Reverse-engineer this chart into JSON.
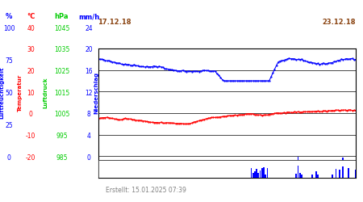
{
  "title_left": "17.12.18",
  "title_right": "23.12.18",
  "footer": "Erstellt: 15.01.2025 07:39",
  "ylabel_blue": "%",
  "ylabel_red": "°C",
  "ylabel_green": "hPa",
  "ylabel_rightblue": "mm/h",
  "rotlabel_blue": "Luftfeuchtigkeit",
  "rotlabel_red": "Temperatur",
  "rotlabel_green": "Luftdruck",
  "rotlabel_rightblue": "Niederschlag",
  "yticks_blue": [
    0,
    25,
    50,
    75,
    100
  ],
  "yticks_red": [
    -20,
    -10,
    0,
    10,
    20,
    30,
    40
  ],
  "yticks_green": [
    985,
    995,
    1005,
    1015,
    1025,
    1035,
    1045
  ],
  "yticks_rightblue": [
    0,
    4,
    8,
    12,
    16,
    20,
    24
  ],
  "bg_color": "#ffffff",
  "plot_bg": "#ffffff",
  "grid_color": "#000000",
  "blue_color": "#0000ff",
  "red_color": "#ff0000",
  "green_color": "#00cc00",
  "n_points": 144
}
